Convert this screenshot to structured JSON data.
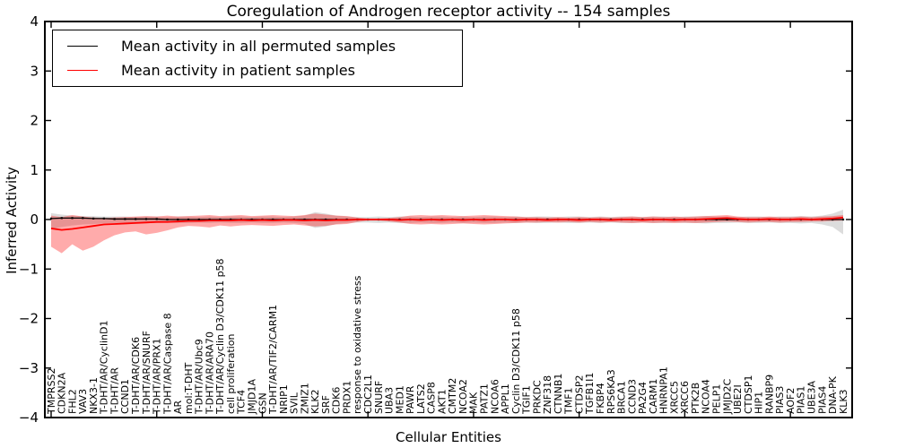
{
  "figure": {
    "title": "Coregulation of Androgen receptor activity -- 154 samples",
    "xlabel": "Cellular Entities",
    "ylabel": "Inferred Activity"
  },
  "chart_data": {
    "type": "line",
    "title": "Coregulation of Androgen receptor activity -- 154 samples",
    "xlabel": "Cellular Entities",
    "ylabel": "Inferred Activity",
    "ylim": [
      -4,
      4
    ],
    "yticks": [
      4,
      3,
      2,
      1,
      0,
      -1,
      -2,
      -3,
      -4
    ],
    "grid": false,
    "legend_position": "upper left",
    "colors": {
      "permuted": "#000000",
      "patient": "#ff0000",
      "permuted_band": "rgba(128,128,128,0.28)",
      "patient_band": "rgba(255,0,0,0.33)"
    },
    "categories": [
      "TMPRSS2",
      "CDKN2A",
      "FHL2",
      "VAV3",
      "NKX3-1",
      "T-DHT/AR/CyclinD1",
      "T-DHT/AR",
      "CCND1",
      "T-DHT/AR/CDK6",
      "T-DHT/AR/SNURF",
      "T-DHT/AR/PRX1",
      "T-DHT/AR/Caspase 8",
      "AR",
      "mol:T-DHT",
      "T-DHT/AR/Ubc9",
      "T-DHT/AR/ARA70",
      "T-DHT/AR/Cyclin D3/CDK11 p58",
      "cell proliferation",
      "TCF4",
      "JMJD1A",
      "GSN",
      "T-DHT/AR/TIF2/CARM1",
      "NRIP1",
      "SVIL",
      "ZMIZ1",
      "KLK2",
      "SRF",
      "CDK6",
      "PRDX1",
      "response to oxidative stress",
      "CDC2L1",
      "SNURF",
      "UBA3",
      "MED1",
      "PAWR",
      "LATS2",
      "CASP8",
      "AKT1",
      "CMTM2",
      "NCOA2",
      "MAK",
      "PATZ1",
      "NCOA6",
      "APPL1",
      "Cyclin D3/CDK11 p58",
      "TGIF1",
      "PRKDC",
      "ZNF318",
      "CTNNB1",
      "TMF1",
      "CTDSP2",
      "TGFB1I1",
      "FKBP4",
      "RPS6KA3",
      "BRCA1",
      "CCND3",
      "PA2G4",
      "CARM1",
      "HNRNPA1",
      "XRCC5",
      "XRCC6",
      "PTK2B",
      "NCOA4",
      "PELP1",
      "JMJD2C",
      "UBE2I",
      "CTDSP1",
      "HIP1",
      "RANBP9",
      "PIAS3",
      "AOF2",
      "PIAS1",
      "UBE3A",
      "PIAS4",
      "DNA-PK",
      "KLK3"
    ],
    "series": [
      {
        "name": "Mean activity in all permuted samples",
        "color": "#000000",
        "values": [
          0.02,
          0.03,
          0.03,
          0.03,
          0.02,
          0.02,
          0.01,
          0.01,
          0.01,
          0.01,
          0.01,
          0.0,
          0.0,
          0.0,
          0.0,
          0.0,
          0.0,
          0.0,
          0.0,
          0.0,
          0.0,
          0.0,
          0.0,
          0.0,
          0.0,
          0.0,
          0.0,
          0.0,
          0.0,
          0.0,
          0.0,
          0.0,
          0.0,
          0.0,
          0.0,
          0.0,
          0.0,
          0.0,
          0.0,
          0.0,
          0.0,
          0.0,
          0.0,
          0.0,
          0.0,
          0.0,
          0.0,
          0.0,
          0.0,
          0.0,
          0.0,
          0.0,
          0.0,
          0.0,
          0.0,
          0.0,
          0.0,
          0.0,
          0.0,
          0.0,
          0.0,
          0.0,
          0.0,
          0.0,
          0.0,
          0.0,
          0.0,
          0.0,
          0.0,
          0.0,
          0.0,
          0.0,
          0.0,
          0.0,
          0.0,
          0.0
        ]
      },
      {
        "name": "Mean activity in patient samples",
        "color": "#ff0000",
        "values": [
          -0.18,
          -0.21,
          -0.19,
          -0.16,
          -0.13,
          -0.1,
          -0.09,
          -0.08,
          -0.07,
          -0.06,
          -0.05,
          -0.05,
          -0.04,
          -0.03,
          -0.03,
          -0.02,
          -0.02,
          -0.02,
          -0.01,
          -0.02,
          -0.01,
          -0.02,
          -0.01,
          -0.01,
          -0.02,
          -0.01,
          -0.02,
          -0.01,
          -0.01,
          0.0,
          0.0,
          0.0,
          0.0,
          -0.01,
          0.0,
          -0.01,
          0.0,
          -0.01,
          0.0,
          -0.01,
          0.0,
          -0.01,
          0.0,
          0.0,
          -0.01,
          0.0,
          0.0,
          -0.01,
          0.0,
          0.0,
          -0.01,
          0.0,
          0.0,
          -0.01,
          0.0,
          0.0,
          -0.01,
          0.0,
          0.0,
          -0.01,
          0.0,
          0.0,
          0.01,
          0.02,
          0.03,
          0.01,
          0.0,
          0.0,
          0.01,
          0.0,
          0.0,
          0.01,
          0.0,
          0.01,
          0.02,
          0.04
        ]
      }
    ],
    "bands": [
      {
        "name": "permuted-sample-range",
        "color": "rgba(128,128,128,0.28)",
        "hi": [
          0.13,
          0.1,
          0.08,
          0.07,
          0.07,
          0.06,
          0.06,
          0.06,
          0.05,
          0.06,
          0.06,
          0.05,
          0.06,
          0.06,
          0.05,
          0.06,
          0.05,
          0.06,
          0.06,
          0.05,
          0.06,
          0.06,
          0.05,
          0.06,
          0.08,
          0.15,
          0.12,
          0.08,
          0.06,
          0.05,
          0.05,
          0.06,
          0.05,
          0.06,
          0.06,
          0.05,
          0.06,
          0.06,
          0.05,
          0.06,
          0.05,
          0.06,
          0.06,
          0.05,
          0.06,
          0.05,
          0.06,
          0.06,
          0.05,
          0.06,
          0.06,
          0.05,
          0.06,
          0.05,
          0.06,
          0.06,
          0.05,
          0.06,
          0.06,
          0.05,
          0.06,
          0.06,
          0.07,
          0.06,
          0.06,
          0.05,
          0.06,
          0.06,
          0.05,
          0.06,
          0.06,
          0.07,
          0.06,
          0.08,
          0.12,
          0.2
        ],
        "lo": [
          -0.2,
          -0.15,
          -0.12,
          -0.1,
          -0.09,
          -0.08,
          -0.07,
          -0.07,
          -0.06,
          -0.07,
          -0.07,
          -0.06,
          -0.07,
          -0.07,
          -0.06,
          -0.07,
          -0.06,
          -0.07,
          -0.07,
          -0.06,
          -0.07,
          -0.07,
          -0.06,
          -0.07,
          -0.09,
          -0.17,
          -0.14,
          -0.09,
          -0.07,
          -0.06,
          -0.06,
          -0.07,
          -0.06,
          -0.07,
          -0.07,
          -0.06,
          -0.07,
          -0.07,
          -0.06,
          -0.07,
          -0.06,
          -0.07,
          -0.07,
          -0.06,
          -0.07,
          -0.06,
          -0.07,
          -0.07,
          -0.06,
          -0.07,
          -0.07,
          -0.06,
          -0.07,
          -0.06,
          -0.07,
          -0.07,
          -0.06,
          -0.07,
          -0.07,
          -0.06,
          -0.07,
          -0.07,
          -0.08,
          -0.07,
          -0.07,
          -0.06,
          -0.07,
          -0.07,
          -0.06,
          -0.07,
          -0.07,
          -0.08,
          -0.07,
          -0.1,
          -0.15,
          -0.3
        ]
      },
      {
        "name": "patient-sample-range",
        "color": "rgba(255,0,0,0.33)",
        "hi": [
          0.08,
          0.05,
          0.09,
          0.06,
          0.04,
          0.03,
          0.04,
          0.05,
          0.06,
          0.07,
          0.06,
          0.08,
          0.06,
          0.07,
          0.08,
          0.09,
          0.07,
          0.08,
          0.09,
          0.07,
          0.08,
          0.09,
          0.08,
          0.07,
          0.09,
          0.12,
          0.1,
          0.08,
          0.07,
          0.04,
          0.02,
          0.02,
          0.03,
          0.05,
          0.08,
          0.09,
          0.08,
          0.09,
          0.08,
          0.07,
          0.08,
          0.09,
          0.08,
          0.07,
          0.06,
          0.05,
          0.05,
          0.04,
          0.05,
          0.04,
          0.05,
          0.04,
          0.05,
          0.04,
          0.05,
          0.06,
          0.05,
          0.06,
          0.05,
          0.06,
          0.05,
          0.06,
          0.07,
          0.08,
          0.09,
          0.06,
          0.05,
          0.05,
          0.06,
          0.05,
          0.05,
          0.06,
          0.05,
          0.06,
          0.07,
          0.09
        ],
        "lo": [
          -0.55,
          -0.68,
          -0.5,
          -0.63,
          -0.55,
          -0.42,
          -0.32,
          -0.26,
          -0.24,
          -0.3,
          -0.27,
          -0.22,
          -0.16,
          -0.13,
          -0.14,
          -0.16,
          -0.12,
          -0.14,
          -0.12,
          -0.11,
          -0.12,
          -0.13,
          -0.11,
          -0.1,
          -0.12,
          -0.14,
          -0.13,
          -0.1,
          -0.09,
          -0.05,
          -0.02,
          -0.02,
          -0.04,
          -0.06,
          -0.09,
          -0.1,
          -0.09,
          -0.1,
          -0.09,
          -0.08,
          -0.09,
          -0.1,
          -0.09,
          -0.08,
          -0.07,
          -0.06,
          -0.06,
          -0.05,
          -0.06,
          -0.05,
          -0.06,
          -0.05,
          -0.06,
          -0.05,
          -0.06,
          -0.07,
          -0.06,
          -0.07,
          -0.06,
          -0.07,
          -0.06,
          -0.07,
          -0.06,
          -0.05,
          -0.04,
          -0.05,
          -0.06,
          -0.05,
          -0.05,
          -0.06,
          -0.05,
          -0.05,
          -0.04,
          -0.04,
          -0.03,
          -0.02
        ]
      }
    ]
  }
}
